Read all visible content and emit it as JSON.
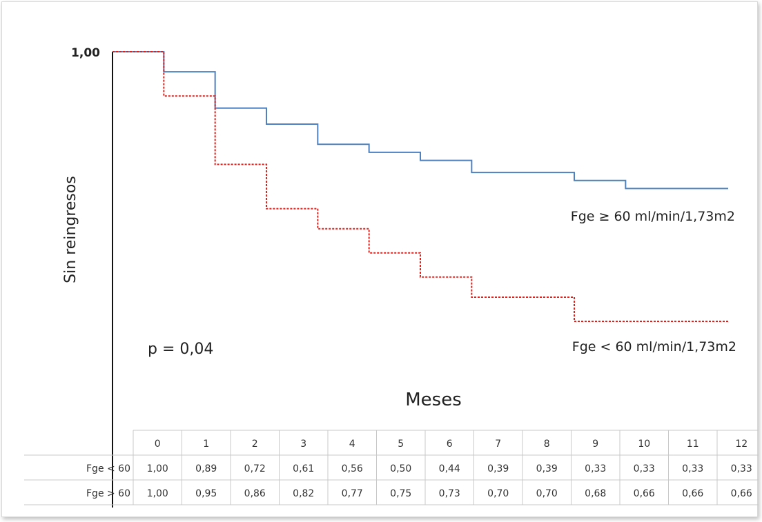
{
  "chart_data": {
    "type": "line",
    "ylabel": "Sin reingresos",
    "xlabel": "Meses",
    "y_tick_label": "1,00",
    "annotation": "p = 0,04",
    "x": [
      0,
      1,
      2,
      3,
      4,
      5,
      6,
      7,
      8,
      9,
      10,
      11,
      12
    ],
    "xlim": [
      0,
      12
    ],
    "ylim": [
      0.2,
      1.0
    ],
    "series": [
      {
        "name": "Fge ≥ 60 ml/min/1,73m2",
        "row_label": "Fge > 60",
        "color": "#4f81bd",
        "style": "solid",
        "values": [
          1.0,
          0.95,
          0.86,
          0.82,
          0.77,
          0.75,
          0.73,
          0.7,
          0.7,
          0.68,
          0.66,
          0.66,
          0.66
        ],
        "display": [
          "1,00",
          "0,95",
          "0,86",
          "0,82",
          "0,77",
          "0,75",
          "0,73",
          "0,70",
          "0,70",
          "0,68",
          "0,66",
          "0,66",
          "0,66"
        ]
      },
      {
        "name": "Fge < 60 ml/min/1,73m2",
        "row_label": "Fge < 60",
        "color": "#e0201b",
        "style": "dotted",
        "values": [
          1.0,
          0.89,
          0.72,
          0.61,
          0.56,
          0.5,
          0.44,
          0.39,
          0.39,
          0.33,
          0.33,
          0.33,
          0.33
        ],
        "display": [
          "1,00",
          "0,89",
          "0,72",
          "0,61",
          "0,56",
          "0,50",
          "0,44",
          "0,39",
          "0,39",
          "0,33",
          "0,33",
          "0,33",
          "0,33"
        ]
      }
    ],
    "table": {
      "header": [
        "0",
        "1",
        "2",
        "3",
        "4",
        "5",
        "6",
        "7",
        "8",
        "9",
        "10",
        "11",
        "12"
      ],
      "row_order": [
        1,
        0
      ]
    }
  }
}
